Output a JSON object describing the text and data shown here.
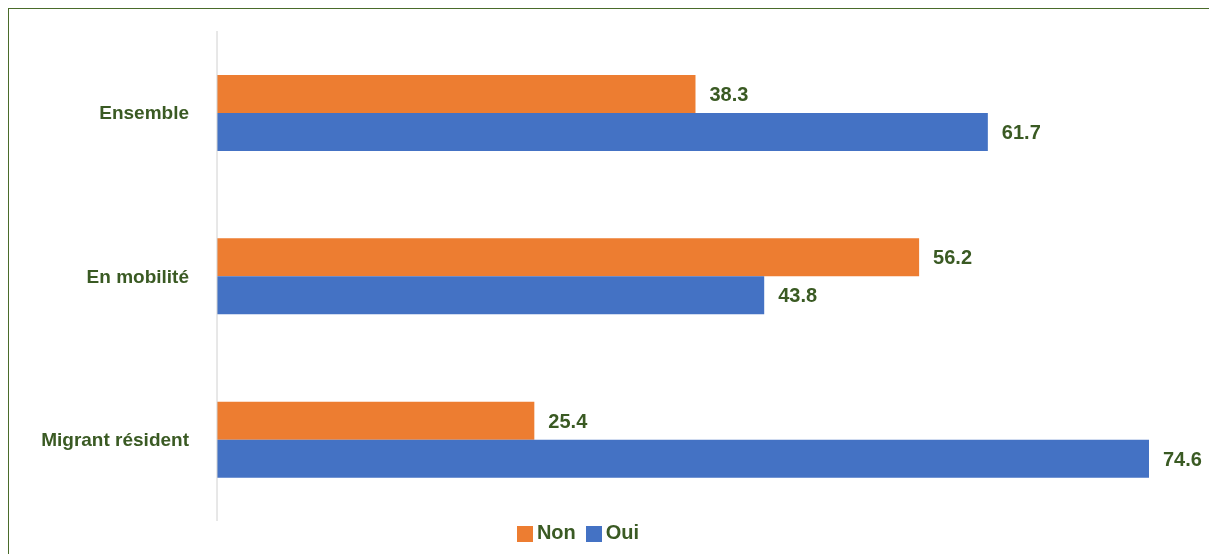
{
  "chart_data": {
    "type": "bar",
    "orientation": "horizontal",
    "categories": [
      "Ensemble",
      "En mobilité",
      "Migrant résident"
    ],
    "series": [
      {
        "name": "Non",
        "color": "#ed7d31",
        "values": [
          38.3,
          56.2,
          25.4
        ]
      },
      {
        "name": "Oui",
        "color": "#4472c4",
        "values": [
          61.7,
          43.8,
          74.6
        ]
      }
    ],
    "tick_labels": "y",
    "data_labels": true,
    "legend": "bottom",
    "grid": false
  }
}
